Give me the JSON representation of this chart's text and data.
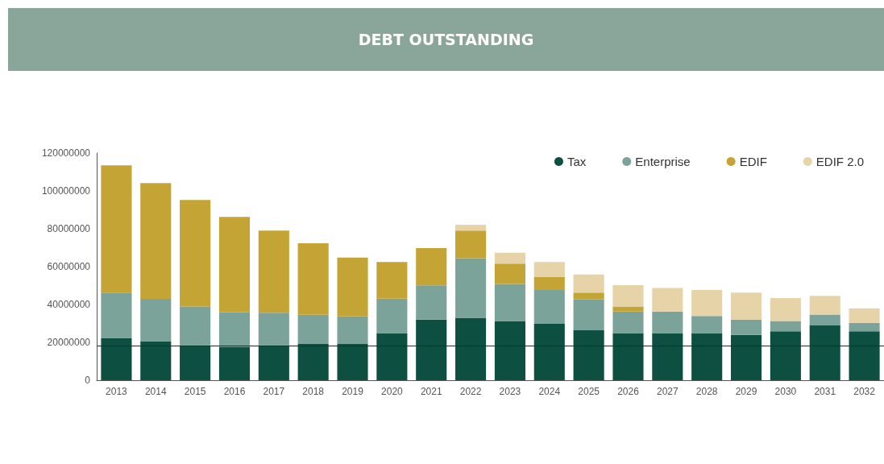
{
  "chart_data": {
    "type": "bar",
    "title": "DEBT OUTSTANDING",
    "stacked": true,
    "categories": [
      "2013",
      "2014",
      "2015",
      "2016",
      "2017",
      "2018",
      "2019",
      "2020",
      "2021",
      "2022",
      "2023",
      "2024",
      "2025",
      "2026",
      "2027",
      "2028",
      "2029",
      "2030",
      "2031",
      "2032"
    ],
    "series": [
      {
        "name": "Tax",
        "color": "#0d4f40",
        "values": [
          22300000,
          20600000,
          18100000,
          17500000,
          18100000,
          19200000,
          19200000,
          24900000,
          32000000,
          33000000,
          31300000,
          29800000,
          26600000,
          24900000,
          24900000,
          24900000,
          23900000,
          25800000,
          28900000,
          25800000
        ]
      },
      {
        "name": "Enterprise",
        "color": "#7ba39a",
        "values": [
          24000000,
          22400000,
          20800000,
          18500000,
          17500000,
          15400000,
          14500000,
          18200000,
          18100000,
          31500000,
          19500000,
          17900000,
          16100000,
          11400000,
          11400000,
          9000000,
          8100000,
          5500000,
          5800000,
          4500000
        ]
      },
      {
        "name": "EDIF",
        "color": "#c4a434",
        "values": [
          67200000,
          61200000,
          56300000,
          50300000,
          43400000,
          37700000,
          31100000,
          19400000,
          19700000,
          14500000,
          10800000,
          6800000,
          3600000,
          2600000,
          0,
          0,
          0,
          0,
          0,
          0
        ]
      },
      {
        "name": "EDIF 2.0",
        "color": "#e6d3a8",
        "values": [
          0,
          0,
          0,
          0,
          0,
          0,
          0,
          0,
          0,
          3100000,
          5700000,
          8000000,
          9600000,
          11300000,
          12400000,
          13800000,
          14300000,
          12100000,
          9900000,
          7700000
        ]
      }
    ],
    "ylim": [
      0,
      120000000
    ],
    "yticks": [
      0,
      20000000,
      40000000,
      60000000,
      80000000,
      100000000,
      120000000
    ],
    "ref_lines": [
      {
        "axis": "y",
        "value": 18000000,
        "color": "#1e2b27"
      }
    ],
    "grid": false,
    "legend": "top right"
  }
}
